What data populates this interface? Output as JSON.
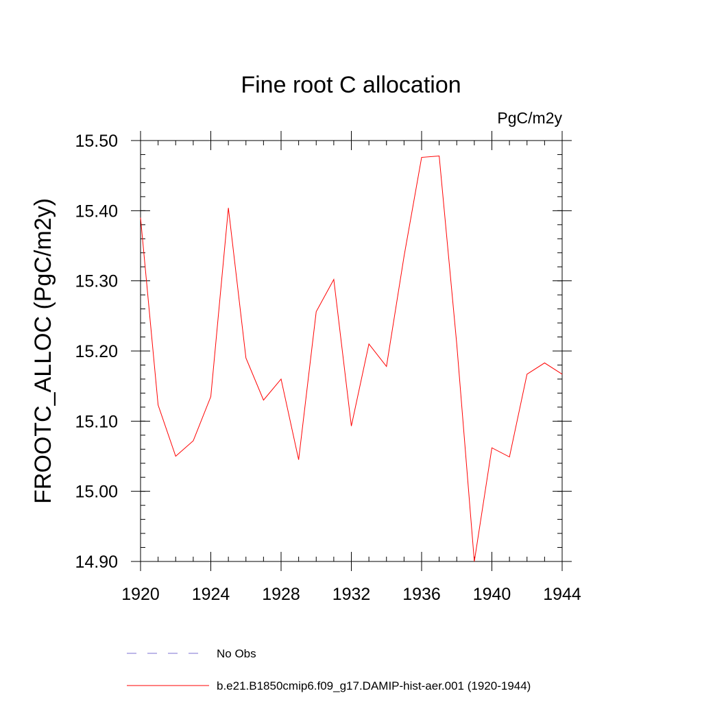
{
  "chart_data": {
    "type": "line",
    "title": "Fine root C allocation",
    "units_label": "PgC/m2y",
    "ylabel": "FROOTC_ALLOC  (PgC/m2y)",
    "xlabel": "",
    "xlim": [
      1920,
      1944
    ],
    "ylim": [
      14.9,
      15.5
    ],
    "x_major_ticks": [
      1920,
      1924,
      1928,
      1932,
      1936,
      1940,
      1944
    ],
    "x_tick_labels": [
      "1920",
      "1924",
      "1928",
      "1932",
      "1936",
      "1940",
      "1944"
    ],
    "y_major_ticks": [
      14.9,
      15.0,
      15.1,
      15.2,
      15.3,
      15.4,
      15.5
    ],
    "y_tick_labels": [
      "14.90",
      "15.00",
      "15.10",
      "15.20",
      "15.30",
      "15.40",
      "15.50"
    ],
    "grid": false,
    "legend_position": "bottom",
    "series": [
      {
        "name": "b.e21.B1850cmip6.f09_g17.DAMIP-hist-aer.001 (1920-1944)",
        "color": "#ff0000",
        "style": "solid",
        "x": [
          1920,
          1921,
          1922,
          1923,
          1924,
          1925,
          1926,
          1927,
          1928,
          1929,
          1930,
          1931,
          1932,
          1933,
          1934,
          1935,
          1936,
          1937,
          1938,
          1939,
          1940,
          1941,
          1942,
          1943,
          1944
        ],
        "values": [
          15.39,
          15.123,
          15.05,
          15.072,
          15.135,
          15.404,
          15.19,
          15.13,
          15.16,
          15.045,
          15.256,
          15.302,
          15.093,
          15.21,
          15.178,
          15.335,
          15.476,
          15.478,
          15.21,
          14.9,
          15.062,
          15.049,
          15.167,
          15.183,
          15.167
        ]
      }
    ],
    "legend": [
      {
        "label": "No Obs",
        "color": "#7b6fd0",
        "style": "dashed"
      },
      {
        "label": "b.e21.B1850cmip6.f09_g17.DAMIP-hist-aer.001 (1920-1944)",
        "color": "#ff0000",
        "style": "solid"
      }
    ]
  }
}
